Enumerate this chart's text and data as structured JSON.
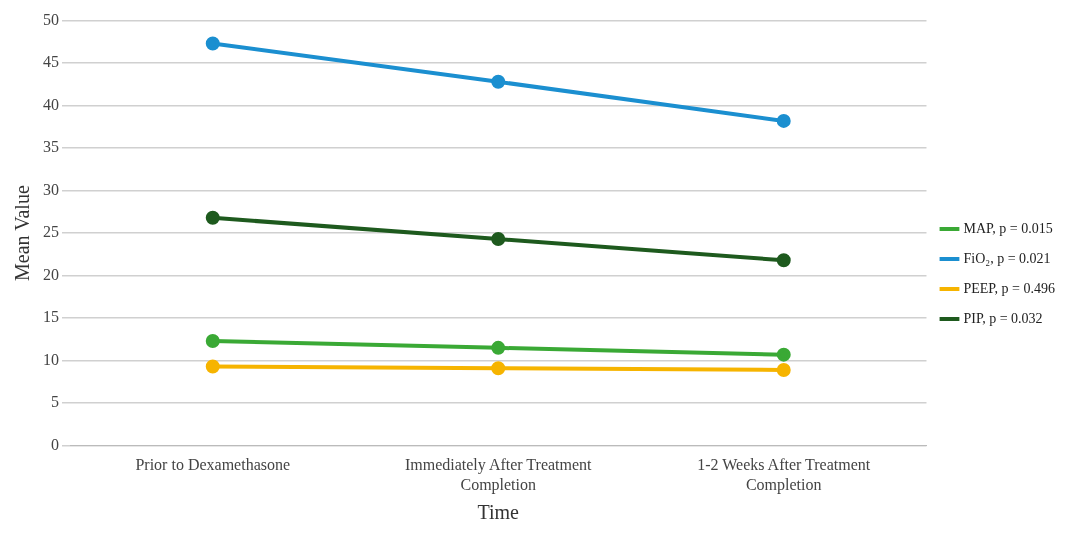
{
  "chart_data": {
    "type": "line",
    "xlabel": "Time",
    "ylabel": "Mean Value",
    "categories": [
      "Prior to Dexamethasone",
      "Immediately After Treatment Completion",
      "1-2 Weeks After Treatment Completion"
    ],
    "series": [
      {
        "name": "MAP, p = 0.015",
        "color": "#3aa935",
        "values": [
          12.3,
          11.5,
          10.7
        ]
      },
      {
        "name": "FiO₂, p = 0.021",
        "color": "#1b8fd0",
        "values": [
          47.3,
          42.8,
          38.2
        ]
      },
      {
        "name": "PEEP, p = 0.496",
        "color": "#f6b400",
        "values": [
          9.3,
          9.1,
          8.9
        ]
      },
      {
        "name": "PIP, p = 0.032",
        "color": "#1e5a1e",
        "values": [
          26.8,
          24.3,
          21.8
        ]
      }
    ],
    "ylim": [
      0,
      50
    ],
    "yticks": [
      0,
      5,
      10,
      15,
      20,
      25,
      30,
      35,
      40,
      45,
      50
    ],
    "grid": "y",
    "legend": "right",
    "marker": "circle",
    "line_style": "solid"
  }
}
